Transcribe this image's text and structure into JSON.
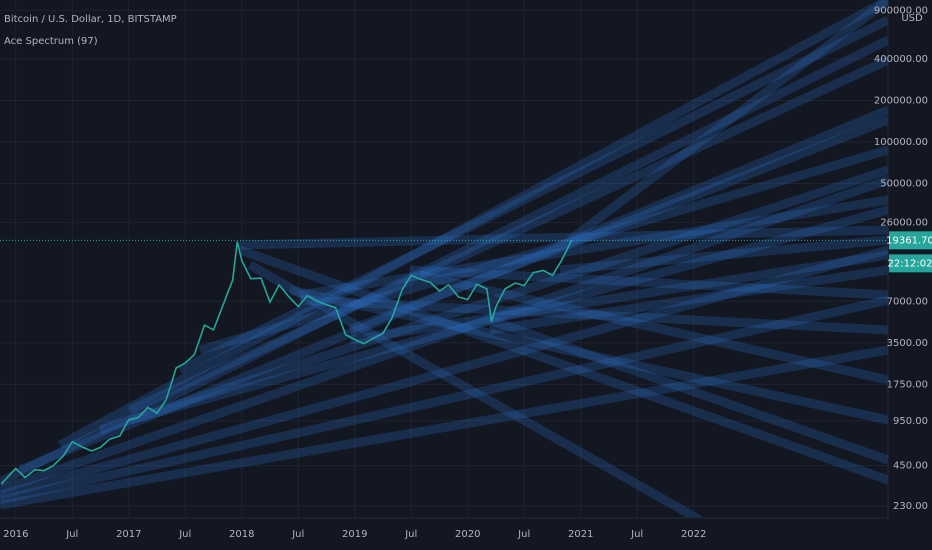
{
  "chart_data": {
    "type": "line",
    "title": "Bitcoin / U.S. Dollar, 1D, BITSTAMP",
    "indicator": "Ace Spectrum (97)",
    "currency": "USD",
    "log_scale": true,
    "grid": true,
    "color": "#26a69a",
    "x": [
      2015.87,
      2016.0,
      2016.08,
      2016.17,
      2016.25,
      2016.33,
      2016.42,
      2016.5,
      2016.58,
      2016.67,
      2016.75,
      2016.83,
      2016.92,
      2017.0,
      2017.08,
      2017.17,
      2017.25,
      2017.33,
      2017.42,
      2017.5,
      2017.58,
      2017.67,
      2017.75,
      2017.83,
      2017.92,
      2017.96,
      2018.0,
      2018.08,
      2018.17,
      2018.25,
      2018.33,
      2018.42,
      2018.5,
      2018.58,
      2018.67,
      2018.75,
      2018.83,
      2018.92,
      2019.0,
      2019.08,
      2019.17,
      2019.25,
      2019.33,
      2019.42,
      2019.5,
      2019.58,
      2019.67,
      2019.75,
      2019.83,
      2019.92,
      2020.0,
      2020.08,
      2020.17,
      2020.21,
      2020.25,
      2020.33,
      2020.42,
      2020.5,
      2020.58,
      2020.67,
      2020.75,
      2020.83,
      2020.92
    ],
    "values": [
      330,
      430,
      370,
      420,
      415,
      450,
      530,
      670,
      620,
      575,
      610,
      700,
      740,
      970,
      1000,
      1190,
      1080,
      1350,
      2300,
      2500,
      2870,
      4700,
      4340,
      6450,
      10000,
      19000,
      13800,
      10200,
      10300,
      6900,
      9200,
      7500,
      6400,
      7700,
      7000,
      6600,
      6300,
      4000,
      3700,
      3450,
      3800,
      4100,
      5300,
      8500,
      10800,
      10100,
      9600,
      8300,
      9200,
      7500,
      7200,
      9300,
      8600,
      5000,
      6400,
      8600,
      9500,
      9100,
      11300,
      11700,
      10800,
      13800,
      19400
    ],
    "xlim": [
      2015.86,
      2023.72
    ],
    "ylim": [
      191,
      1070000
    ],
    "xticks": [
      2016,
      {
        "value": 2016.5,
        "label": "Jul"
      },
      2017,
      {
        "value": 2017.5,
        "label": "Jul"
      },
      2018,
      {
        "value": 2018.5,
        "label": "Jul"
      },
      2019,
      {
        "value": 2019.5,
        "label": "Jul"
      },
      2020,
      {
        "value": 2020.5,
        "label": "Jul"
      },
      2021,
      {
        "value": 2021.5,
        "label": "Jul"
      },
      2022
    ],
    "yticks": [
      {
        "value": 900000,
        "label": "900000.00"
      },
      {
        "value": 400000,
        "label": "400000.00"
      },
      {
        "value": 200000,
        "label": "200000.00"
      },
      {
        "value": 100000,
        "label": "100000.00"
      },
      {
        "value": 50000,
        "label": "50000.00"
      },
      {
        "value": 26000,
        "label": "26000.00"
      },
      {
        "value": 7000,
        "label": "7000.00"
      },
      {
        "value": 3500,
        "label": "3500.00"
      },
      {
        "value": 1750,
        "label": "1750.00"
      },
      {
        "value": 950,
        "label": "950.00"
      },
      {
        "value": 450,
        "label": "450.00"
      },
      {
        "value": 230,
        "label": "230.00"
      }
    ],
    "last_price": {
      "value": 19361.7,
      "label": "19361.70"
    },
    "countdown": "22:12:02"
  }
}
